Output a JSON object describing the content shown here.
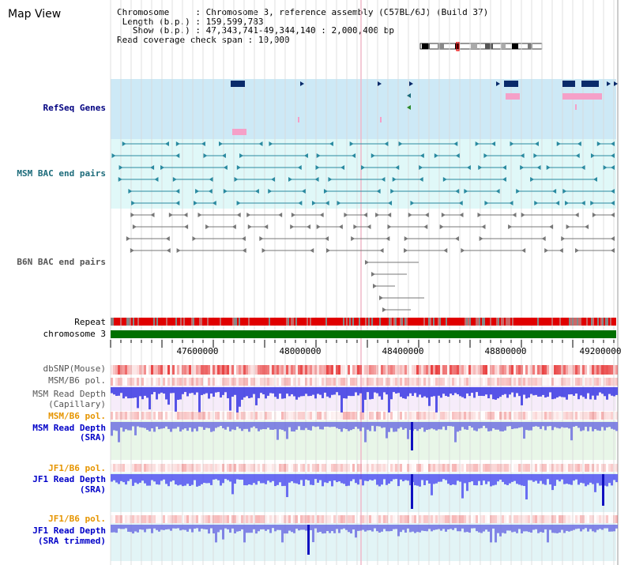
{
  "title": "Map View",
  "info": {
    "chromosome_key": "Chromosome",
    "chromosome_val": "Chromosome 3, reference assembly (C57BL/6J) (Build 37)",
    "length_key": "Length (b.p.)",
    "length_val": "159,599,783",
    "show_key": "Show (b.p.)",
    "show_val": "47,343,741-49,344,140 : 2,000,400 bp",
    "coverage_key": "Read coverage check span",
    "coverage_val": "10,000"
  },
  "tracks": {
    "refseq": "RefSeq Genes",
    "msm_bac": "MSM BAC end pairs",
    "b6n_bac": "B6N BAC end pairs",
    "repeat": "Repeat",
    "chromosome": "chromosome 3",
    "dbsnp": "dbSNP(Mouse)",
    "msm_b6_pol1": "MSM/B6 pol.",
    "msm_depth_cap_1": "MSM Read Depth",
    "msm_depth_cap_2": "(Capillary)",
    "msm_b6_pol2": "MSM/B6 pol.",
    "msm_depth_sra_1": "MSM Read Depth",
    "msm_depth_sra_2": "(SRA)",
    "jf1_b6_pol1": "JF1/B6 pol.",
    "jf1_depth_1": "JF1 Read Depth",
    "jf1_depth_2": "(SRA)",
    "jf1_b6_pol2": "JF1/B6 pol.",
    "jf1_trim_1": "JF1 Read Depth",
    "jf1_trim_2": "(SRA trimmed)"
  },
  "axis_ticks": [
    "47600000",
    "48000000",
    "48400000",
    "48800000",
    "49200000"
  ],
  "colors": {
    "refseq_bg": "#cde9f6",
    "msm_bac_bg": "#e0f8f8",
    "gene_dark": "#0a2a6a",
    "gene_pink": "#f5a0c8",
    "repeat_red": "#e00000",
    "chrom_green": "#007000",
    "snp_red": "#f04040",
    "depth_blue": "#3030e0",
    "orange_label": "#e69500"
  }
}
